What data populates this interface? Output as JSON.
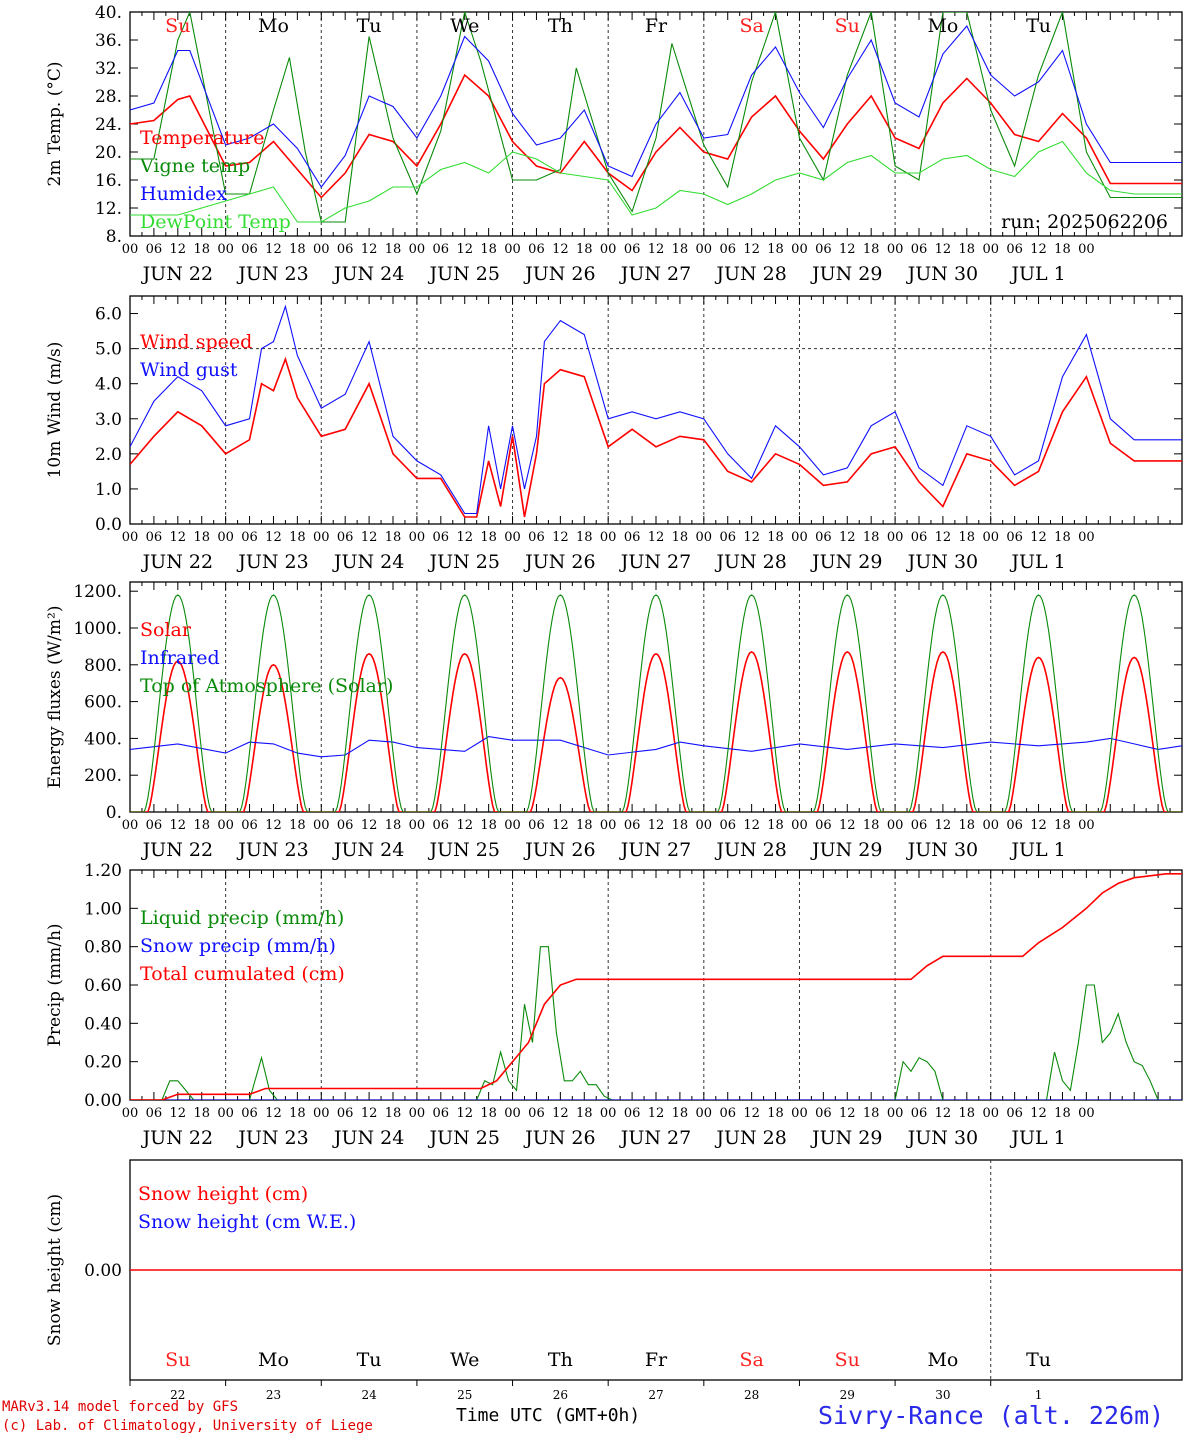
{
  "footer": {
    "model_line": "MARv3.14 model forced by GFS",
    "credit_line": "(c) Lab. of Climatology, University of Liege",
    "xaxis_title": "Time UTC (GMT+0h)",
    "station": "Sivry-Rance (alt. 226m)"
  },
  "colors": {
    "red": "#ff0000",
    "green": "#0a8a0a",
    "blue": "#1010ff",
    "lightgreen": "#33dd33",
    "weekend_day": "#ff2020",
    "black": "#000000"
  },
  "days": {
    "labels": [
      "Su",
      "Mo",
      "Tu",
      "We",
      "Th",
      "Fr",
      "Sa",
      "Su",
      "Mo",
      "Tu"
    ],
    "weekend": [
      true,
      false,
      false,
      false,
      false,
      false,
      true,
      true,
      false,
      false
    ],
    "dates": [
      "JUN 22",
      "JUN 23",
      "JUN 24",
      "JUN 25",
      "JUN 26",
      "JUN 27",
      "JUN 28",
      "JUN 29",
      "JUN 30",
      "JUL  1"
    ],
    "day_numbers": [
      "22",
      "23",
      "24",
      "25",
      "26",
      "27",
      "28",
      "29",
      "30",
      "1"
    ],
    "hour_ticks": [
      "00",
      "06",
      "12",
      "18"
    ],
    "final_tick": "00"
  },
  "chart_data": [
    {
      "type": "line",
      "ylabel": "2m Temp. (°C)",
      "ylim": [
        8,
        40
      ],
      "yticks": [
        "8.",
        "12.",
        "16.",
        "20.",
        "24.",
        "28.",
        "32.",
        "36.",
        "40."
      ],
      "annotation": "run: 2025062206",
      "x_unit": "hours since JUN 22 00 UTC",
      "series": [
        {
          "name": "Temperature",
          "color": "red",
          "x": [
            0,
            6,
            12,
            15,
            24,
            30,
            36,
            42,
            48,
            54,
            60,
            66,
            72,
            78,
            84,
            90,
            96,
            102,
            108,
            114,
            120,
            126,
            132,
            138,
            144,
            150,
            156,
            162,
            168,
            174,
            180,
            186,
            192,
            198,
            204,
            210,
            216,
            222,
            228,
            234,
            240,
            246,
            252,
            258,
            264
          ],
          "y": [
            24,
            24.5,
            27.5,
            28,
            18,
            18.5,
            21.5,
            17.5,
            13.5,
            17,
            22.5,
            21.5,
            18,
            24,
            31,
            28,
            21.5,
            18,
            17,
            21.5,
            17,
            14.5,
            20,
            23.5,
            20,
            19,
            25,
            28,
            23,
            19,
            24,
            28,
            22,
            20.5,
            27,
            30.5,
            27,
            22.5,
            21.5,
            25.5,
            22,
            15.5,
            15.5,
            15.5,
            15.5
          ]
        },
        {
          "name": "Vigne temp",
          "color": "green",
          "x": [
            0,
            6,
            12,
            15,
            24,
            30,
            36,
            40,
            44,
            48,
            54,
            60,
            66,
            72,
            78,
            84,
            88,
            96,
            102,
            108,
            112,
            120,
            126,
            132,
            136,
            144,
            150,
            156,
            162,
            168,
            174,
            180,
            186,
            192,
            198,
            204,
            210,
            216,
            222,
            228,
            234,
            240,
            246,
            252,
            258,
            264
          ],
          "y": [
            19,
            19,
            36,
            40,
            14,
            14,
            26,
            33.5,
            20,
            10,
            10,
            36.5,
            22,
            14,
            23,
            40,
            33,
            16,
            16,
            17.5,
            32,
            17,
            11.5,
            22,
            35.5,
            21,
            15,
            30,
            40,
            22,
            16,
            31,
            40,
            18,
            16,
            40,
            40,
            26,
            18,
            31,
            40,
            20,
            13.5,
            13.5,
            13.5,
            13.5
          ]
        },
        {
          "name": "Humidex",
          "color": "blue",
          "x": [
            0,
            6,
            12,
            15,
            24,
            30,
            36,
            42,
            48,
            54,
            60,
            66,
            72,
            78,
            84,
            90,
            96,
            102,
            108,
            114,
            120,
            126,
            132,
            138,
            144,
            150,
            156,
            162,
            168,
            174,
            180,
            186,
            192,
            198,
            204,
            210,
            216,
            222,
            228,
            234,
            240,
            246,
            252,
            258,
            264
          ],
          "y": [
            26,
            27,
            34.5,
            34.5,
            21,
            22,
            24,
            20.5,
            15,
            19.5,
            28,
            26.5,
            22,
            28,
            36.5,
            33,
            25.5,
            21,
            22,
            26,
            18,
            16.5,
            24,
            28.5,
            22,
            22.5,
            31,
            35,
            28.5,
            23.5,
            30.5,
            36,
            27,
            25,
            34,
            38,
            31,
            28,
            30,
            34.5,
            24,
            18.5,
            18.5,
            18.5,
            18.5
          ]
        },
        {
          "name": "DewPoint Temp",
          "color": "lightgreen",
          "x": [
            0,
            12,
            24,
            36,
            42,
            48,
            54,
            60,
            66,
            72,
            78,
            84,
            90,
            96,
            102,
            108,
            114,
            120,
            126,
            132,
            138,
            144,
            150,
            156,
            162,
            168,
            174,
            180,
            186,
            192,
            198,
            204,
            210,
            216,
            222,
            228,
            234,
            240,
            246,
            252,
            258,
            264
          ],
          "y": [
            11,
            11,
            13,
            15,
            10,
            10,
            12,
            13,
            15,
            15,
            17.5,
            18.5,
            17,
            20,
            19,
            17,
            16.5,
            16,
            11,
            12,
            14.5,
            14,
            12.5,
            14,
            16,
            17,
            16,
            18.5,
            19.5,
            17,
            17,
            19,
            19.5,
            17.5,
            16.5,
            20,
            21.5,
            17,
            14.5,
            14,
            14,
            14
          ]
        }
      ]
    },
    {
      "type": "line",
      "ylabel": "10m Wind (m/s)",
      "ylim": [
        0,
        6.5
      ],
      "yticks": [
        "0.0",
        "1.0",
        "2.0",
        "3.0",
        "4.0",
        "5.0",
        "6.0"
      ],
      "reference_line": 5,
      "x_unit": "hours since JUN 22 00 UTC",
      "series": [
        {
          "name": "Wind speed",
          "color": "red",
          "x": [
            0,
            6,
            12,
            18,
            24,
            30,
            33,
            36,
            39,
            42,
            48,
            54,
            60,
            66,
            72,
            78,
            84,
            87,
            90,
            93,
            96,
            99,
            102,
            104,
            108,
            114,
            120,
            126,
            132,
            138,
            144,
            150,
            156,
            162,
            168,
            174,
            180,
            186,
            192,
            198,
            204,
            210,
            216,
            222,
            228,
            234,
            240,
            246,
            252,
            258,
            264
          ],
          "y": [
            1.7,
            2.5,
            3.2,
            2.8,
            2.0,
            2.4,
            4.0,
            3.8,
            4.7,
            3.6,
            2.5,
            2.7,
            4.0,
            2.0,
            1.3,
            1.3,
            0.2,
            0.2,
            1.8,
            0.5,
            2.5,
            0.2,
            2.0,
            4.0,
            4.4,
            4.2,
            2.2,
            2.7,
            2.2,
            2.5,
            2.4,
            1.5,
            1.2,
            2.0,
            1.7,
            1.1,
            1.2,
            2.0,
            2.2,
            1.2,
            0.5,
            2.0,
            1.8,
            1.1,
            1.5,
            3.2,
            4.2,
            2.3,
            1.8,
            1.8,
            1.8
          ]
        },
        {
          "name": "Wind gust",
          "color": "blue",
          "x": [
            0,
            6,
            12,
            18,
            24,
            30,
            33,
            36,
            39,
            42,
            48,
            54,
            60,
            66,
            72,
            78,
            84,
            87,
            90,
            93,
            96,
            99,
            102,
            104,
            108,
            114,
            120,
            126,
            132,
            138,
            144,
            150,
            156,
            162,
            168,
            174,
            180,
            186,
            192,
            198,
            204,
            210,
            216,
            222,
            228,
            234,
            240,
            246,
            252,
            258,
            264
          ],
          "y": [
            2.2,
            3.5,
            4.2,
            3.8,
            2.8,
            3.0,
            5.0,
            5.2,
            6.2,
            4.8,
            3.3,
            3.7,
            5.2,
            2.5,
            1.8,
            1.4,
            0.3,
            0.3,
            2.8,
            1.0,
            2.8,
            1.0,
            2.5,
            5.2,
            5.8,
            5.4,
            3.0,
            3.2,
            3.0,
            3.2,
            3.0,
            2.0,
            1.3,
            2.8,
            2.2,
            1.4,
            1.6,
            2.8,
            3.2,
            1.6,
            1.1,
            2.8,
            2.5,
            1.4,
            1.8,
            4.2,
            5.4,
            3.0,
            2.4,
            2.4,
            2.4
          ]
        }
      ]
    },
    {
      "type": "line",
      "ylabel": "Energy fluxes (W/m²)",
      "ylim": [
        0,
        1250
      ],
      "yticks": [
        "0.",
        "200.",
        "400.",
        "600.",
        "800.",
        "1000.",
        "1200."
      ],
      "x_unit": "hours since JUN 22 00 UTC",
      "series": [
        {
          "name": "Solar",
          "color": "red",
          "daily_peaks": [
            820,
            800,
            860,
            860,
            730,
            860,
            870,
            870,
            870,
            840
          ]
        },
        {
          "name": "Infrared",
          "color": "blue",
          "x": [
            0,
            12,
            24,
            30,
            36,
            42,
            48,
            54,
            60,
            66,
            72,
            84,
            90,
            96,
            108,
            120,
            132,
            138,
            144,
            156,
            168,
            180,
            192,
            204,
            216,
            228,
            240,
            246,
            252,
            258,
            264
          ],
          "y": [
            340,
            370,
            320,
            380,
            370,
            320,
            300,
            310,
            390,
            380,
            350,
            330,
            410,
            390,
            390,
            310,
            340,
            380,
            360,
            330,
            370,
            340,
            370,
            350,
            380,
            360,
            380,
            400,
            370,
            340,
            360
          ]
        },
        {
          "name": "Top of Atmosphere (Solar)",
          "color": "green",
          "daily_peak": 1180
        }
      ]
    },
    {
      "type": "line",
      "ylabel": "Precip (mm/h)",
      "ylim": [
        0,
        1.2
      ],
      "yticks": [
        "0.00",
        "0.20",
        "0.40",
        "0.60",
        "0.80",
        "1.00",
        "1.20"
      ],
      "x_unit": "hours since JUN 22 00 UTC",
      "series": [
        {
          "name": "Liquid precip (mm/h)",
          "color": "green",
          "x": [
            0,
            8,
            10,
            12,
            14,
            16,
            30,
            33,
            35,
            37,
            87,
            89,
            91,
            93,
            95,
            97,
            99,
            101,
            103,
            105,
            107,
            109,
            111,
            113,
            115,
            117,
            119,
            121,
            192,
            194,
            196,
            198,
            200,
            202,
            204,
            230,
            232,
            234,
            236,
            238,
            240,
            242,
            244,
            246,
            248,
            250,
            252,
            254,
            256,
            258,
            264
          ],
          "y": [
            0,
            0,
            0.1,
            0.1,
            0.05,
            0,
            0,
            0.22,
            0.05,
            0,
            0,
            0.1,
            0.08,
            0.25,
            0.1,
            0.05,
            0.5,
            0.3,
            0.8,
            0.8,
            0.35,
            0.1,
            0.1,
            0.15,
            0.08,
            0.08,
            0.02,
            0,
            0,
            0.2,
            0.15,
            0.22,
            0.2,
            0.15,
            0,
            0,
            0.25,
            0.1,
            0.05,
            0.3,
            0.6,
            0.6,
            0.3,
            0.35,
            0.45,
            0.3,
            0.2,
            0.18,
            0.1,
            0,
            0
          ]
        },
        {
          "name": "Snow precip (mm/h)",
          "color": "blue",
          "x": [
            0,
            264
          ],
          "y": [
            0,
            0
          ]
        },
        {
          "name": "Total cumulated (cm)",
          "color": "red",
          "x": [
            0,
            8,
            12,
            30,
            34,
            36,
            88,
            92,
            96,
            100,
            104,
            108,
            112,
            116,
            120,
            192,
            196,
            200,
            204,
            224,
            228,
            234,
            240,
            244,
            248,
            252,
            256,
            260,
            264
          ],
          "y": [
            0,
            0,
            0.03,
            0.03,
            0.06,
            0.06,
            0.06,
            0.1,
            0.2,
            0.3,
            0.5,
            0.6,
            0.63,
            0.63,
            0.63,
            0.63,
            0.63,
            0.7,
            0.75,
            0.75,
            0.82,
            0.9,
            1.0,
            1.08,
            1.13,
            1.16,
            1.17,
            1.18,
            1.18
          ]
        }
      ]
    },
    {
      "type": "line",
      "ylabel": "Snow height (cm)",
      "yticks": [
        "0.00"
      ],
      "series": [
        {
          "name": "Snow height (cm)",
          "color": "red",
          "x": [
            0,
            264
          ],
          "y": [
            0,
            0
          ]
        },
        {
          "name": "Snow height (cm W.E.)",
          "color": "blue"
        }
      ]
    }
  ]
}
